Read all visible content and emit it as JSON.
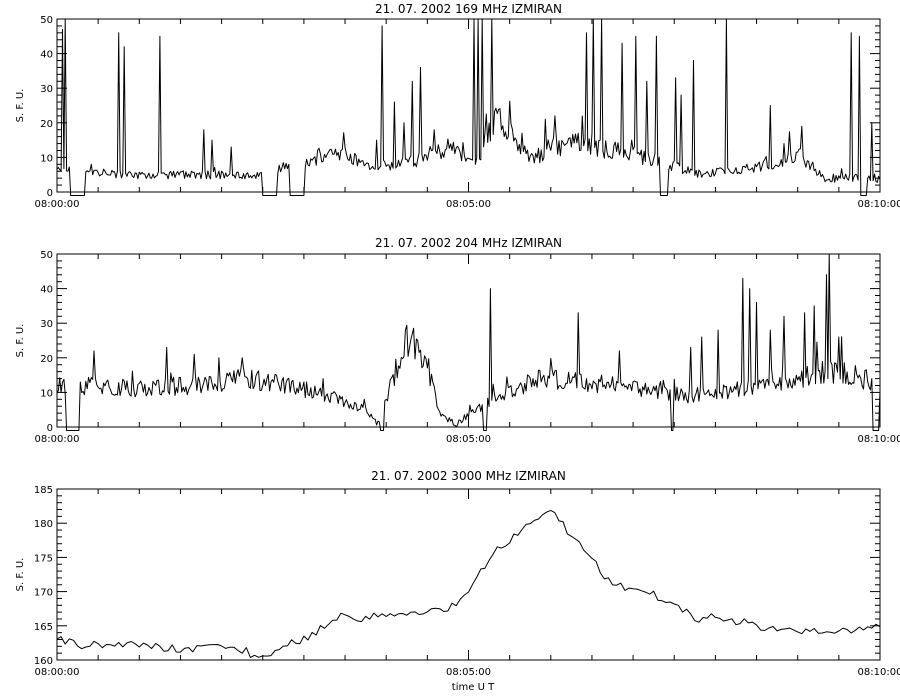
{
  "figure": {
    "xlabel": "time  U T"
  },
  "chart_data": [
    {
      "type": "line",
      "title": "21.  07.  2002    169  MHz    IZMIRAN",
      "ylabel": "S. F. U.",
      "xlim": [
        "08:00:00",
        "08:10:00"
      ],
      "ylim": [
        0,
        50
      ],
      "yticks": [
        0,
        10,
        20,
        30,
        40,
        50
      ],
      "xticks": [
        "08:00:00",
        "08:05:00",
        "08:10:00"
      ],
      "x_minor_interval_s": 30,
      "sample_interval_s": 1,
      "series": [
        {
          "baseline": [
            [
              0,
              6
            ],
            [
              60,
              5
            ],
            [
              150,
              5
            ],
            [
              180,
              9
            ],
            [
              210,
              11
            ],
            [
              230,
              7
            ],
            [
              260,
              9
            ],
            [
              285,
              13
            ],
            [
              305,
              8
            ],
            [
              320,
              22
            ],
            [
              345,
              9
            ],
            [
              360,
              13
            ],
            [
              380,
              14
            ],
            [
              420,
              11
            ],
            [
              470,
              5
            ],
            [
              520,
              8
            ],
            [
              540,
              11
            ],
            [
              560,
              4
            ],
            [
              600,
              4
            ]
          ],
          "peaks": [
            [
              4,
              47
            ],
            [
              6,
              50
            ],
            [
              14,
              27
            ],
            [
              16,
              5
            ],
            [
              45,
              46
            ],
            [
              49,
              42
            ],
            [
              75,
              45
            ],
            [
              107,
              18
            ],
            [
              113,
              15
            ],
            [
              127,
              13
            ],
            [
              152,
              14
            ],
            [
              190,
              12
            ],
            [
              233,
              15
            ],
            [
              237,
              48
            ],
            [
              246,
              26
            ],
            [
              253,
              20
            ],
            [
              259,
              32
            ],
            [
              265,
              36
            ],
            [
              275,
              18
            ],
            [
              304,
              50
            ],
            [
              307,
              50
            ],
            [
              310,
              50
            ],
            [
              317,
              50
            ],
            [
              339,
              17
            ],
            [
              356,
              21
            ],
            [
              363,
              22
            ],
            [
              375,
              13
            ],
            [
              381,
              12
            ],
            [
              386,
              46
            ],
            [
              391,
              50
            ],
            [
              397,
              50
            ],
            [
              412,
              43
            ],
            [
              422,
              45
            ],
            [
              430,
              32
            ],
            [
              437,
              45
            ],
            [
              445,
              30
            ],
            [
              451,
              33
            ],
            [
              455,
              28
            ],
            [
              464,
              38
            ],
            [
              488,
              50
            ],
            [
              520,
              25
            ],
            [
              530,
              14
            ],
            [
              543,
              19
            ],
            [
              579,
              46
            ],
            [
              585,
              45
            ],
            [
              590,
              30
            ],
            [
              594,
              20
            ]
          ],
          "dropouts": [
            [
              10,
              20
            ],
            [
              150,
              160
            ],
            [
              170,
              180
            ],
            [
              440,
              445
            ],
            [
              586,
              590
            ]
          ]
        }
      ]
    },
    {
      "type": "line",
      "title": "21.  07.  2002    204  MHz    IZMIRAN",
      "ylabel": "S. F. U.",
      "xlim": [
        "08:00:00",
        "08:10:00"
      ],
      "ylim": [
        0,
        50
      ],
      "yticks": [
        0,
        10,
        20,
        30,
        40,
        50
      ],
      "xticks": [
        "08:00:00",
        "08:05:00",
        "08:10:00"
      ],
      "x_minor_interval_s": 30,
      "sample_interval_s": 1,
      "series": [
        {
          "baseline": [
            [
              0,
              12
            ],
            [
              20,
              12
            ],
            [
              60,
              11
            ],
            [
              100,
              12
            ],
            [
              140,
              14
            ],
            [
              170,
              12
            ],
            [
              200,
              9
            ],
            [
              225,
              5
            ],
            [
              235,
              1
            ],
            [
              240,
              8
            ],
            [
              255,
              26
            ],
            [
              270,
              18
            ],
            [
              280,
              3
            ],
            [
              290,
              1
            ],
            [
              310,
              6
            ],
            [
              330,
              10
            ],
            [
              350,
              14
            ],
            [
              385,
              13
            ],
            [
              420,
              11
            ],
            [
              460,
              9
            ],
            [
              500,
              11
            ],
            [
              530,
              13
            ],
            [
              560,
              16
            ],
            [
              580,
              15
            ],
            [
              600,
              12
            ]
          ],
          "peaks": [
            [
              17,
              13
            ],
            [
              27,
              22
            ],
            [
              80,
              23
            ],
            [
              100,
              21
            ],
            [
              118,
              20
            ],
            [
              135,
              20
            ],
            [
              254,
              28
            ],
            [
              259,
              27
            ],
            [
              311,
              46
            ],
            [
              313,
              38
            ],
            [
              316,
              40
            ],
            [
              380,
              33
            ],
            [
              410,
              22
            ],
            [
              462,
              23
            ],
            [
              470,
              26
            ],
            [
              482,
              28
            ],
            [
              500,
              43
            ],
            [
              505,
              40
            ],
            [
              510,
              36
            ],
            [
              520,
              28
            ],
            [
              530,
              32
            ],
            [
              545,
              33
            ],
            [
              552,
              35
            ],
            [
              561,
              44
            ],
            [
              563,
              50
            ],
            [
              570,
              26
            ],
            [
              594,
              14
            ]
          ],
          "dropouts": [
            [
              7,
              16
            ],
            [
              236,
              238
            ],
            [
              311,
              313
            ],
            [
              448,
              449
            ],
            [
              595,
              599
            ]
          ]
        }
      ]
    },
    {
      "type": "line",
      "title": "21.  07.  2002    3000  MHz    IZMIRAN",
      "ylabel": "S. F. U.",
      "xlabel": "time  U T",
      "xlim": [
        "08:00:00",
        "08:10:00"
      ],
      "ylim": [
        160,
        185
      ],
      "yticks": [
        160,
        165,
        170,
        175,
        180,
        185
      ],
      "xticks": [
        "08:00:00",
        "08:05:00",
        "08:10:00"
      ],
      "x_minor_interval_s": 30,
      "sample_interval_s": 3,
      "series": [
        {
          "points": [
            [
              0,
              163
            ],
            [
              20,
              162
            ],
            [
              45,
              162.5
            ],
            [
              70,
              162
            ],
            [
              95,
              161.5
            ],
            [
              115,
              162
            ],
            [
              135,
              161.5
            ],
            [
              152,
              160
            ],
            [
              165,
              162
            ],
            [
              185,
              163.5
            ],
            [
              205,
              166.5
            ],
            [
              225,
              166
            ],
            [
              245,
              167
            ],
            [
              265,
              167
            ],
            [
              285,
              167.5
            ],
            [
              300,
              170
            ],
            [
              315,
              175
            ],
            [
              330,
              177.5
            ],
            [
              345,
              180
            ],
            [
              358,
              182
            ],
            [
              370,
              179.5
            ],
            [
              385,
              176
            ],
            [
              400,
              172
            ],
            [
              415,
              170.5
            ],
            [
              430,
              170
            ],
            [
              445,
              168.5
            ],
            [
              455,
              167.5
            ],
            [
              465,
              166
            ],
            [
              480,
              166.5
            ],
            [
              500,
              165.5
            ],
            [
              520,
              164.5
            ],
            [
              540,
              164.5
            ],
            [
              560,
              164
            ],
            [
              580,
              164.5
            ],
            [
              600,
              165
            ]
          ]
        }
      ]
    }
  ]
}
